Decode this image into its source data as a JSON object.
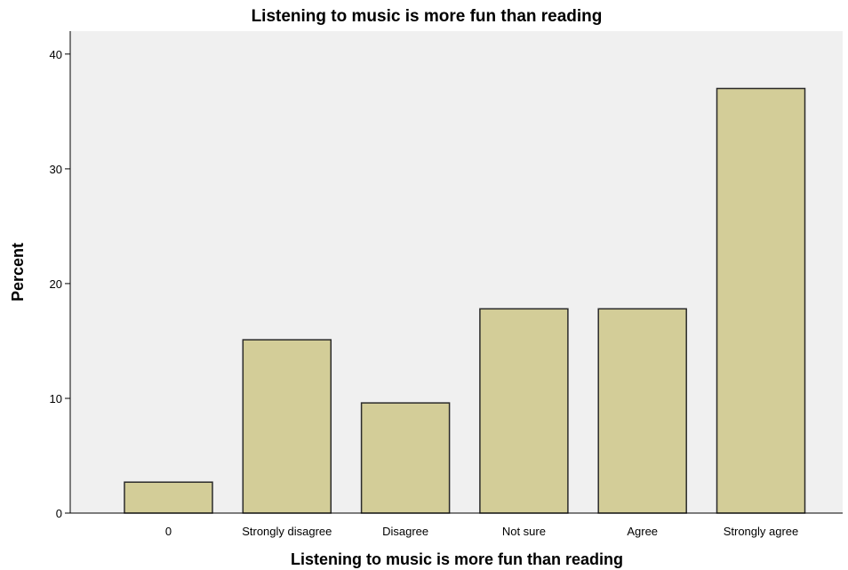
{
  "chart_data": {
    "type": "bar",
    "title": "Listening to music is more fun than reading",
    "xlabel": "Listening to music is more fun than reading",
    "ylabel": "Percent",
    "categories": [
      "0",
      "Strongly disagree",
      "Disagree",
      "Not sure",
      "Agree",
      "Strongly agree"
    ],
    "values": [
      2.7,
      15.1,
      9.6,
      17.8,
      17.8,
      37.0
    ],
    "ylim": [
      0,
      42
    ],
    "yticks": [
      0,
      10,
      20,
      30,
      40
    ],
    "grid": false,
    "legend": "none",
    "colors": {
      "bar_fill": "#d3cd98",
      "bar_stroke": "#2a2a2a",
      "plot_background": "#f0f0f0",
      "axis": "#000000"
    }
  }
}
